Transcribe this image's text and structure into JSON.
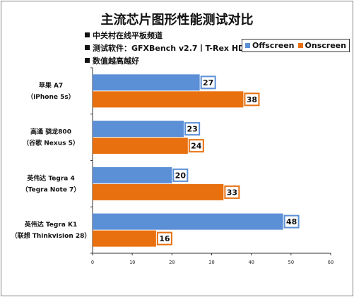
{
  "chart_data": {
    "type": "bar",
    "orientation": "horizontal",
    "title": "主流芯片图形性能测试对比",
    "notes": [
      "中关村在线平板频道",
      "测试软件：GFXBench v2.7丨T-Rex HD",
      "数值越高越好"
    ],
    "categories": [
      {
        "line1": "苹果 A7",
        "line2": "（iPhone 5s）"
      },
      {
        "line1": "高通 骁龙800",
        "line2": "（谷歌 Nexus 5）"
      },
      {
        "line1": "英伟达 Tegra 4",
        "line2": "（Tegra Note 7）"
      },
      {
        "line1": "英伟达 Tegra K1",
        "line2": "（联想 Thinkvision 28）"
      }
    ],
    "series": [
      {
        "name": "Offscreen",
        "values": [
          27,
          23,
          20,
          48
        ]
      },
      {
        "name": "Onscreen",
        "values": [
          38,
          24,
          33,
          16
        ]
      }
    ],
    "colors": {
      "Offscreen": "#5b8fd6",
      "Onscreen": "#e8700e"
    },
    "label_border_colors": {
      "Offscreen": "#5b8fd6",
      "Onscreen": "#e8700e"
    },
    "xlim": [
      0,
      60
    ],
    "xticks": [
      0,
      10,
      20,
      30,
      40,
      50,
      60
    ],
    "grid": false,
    "legend_position": "top-right"
  }
}
